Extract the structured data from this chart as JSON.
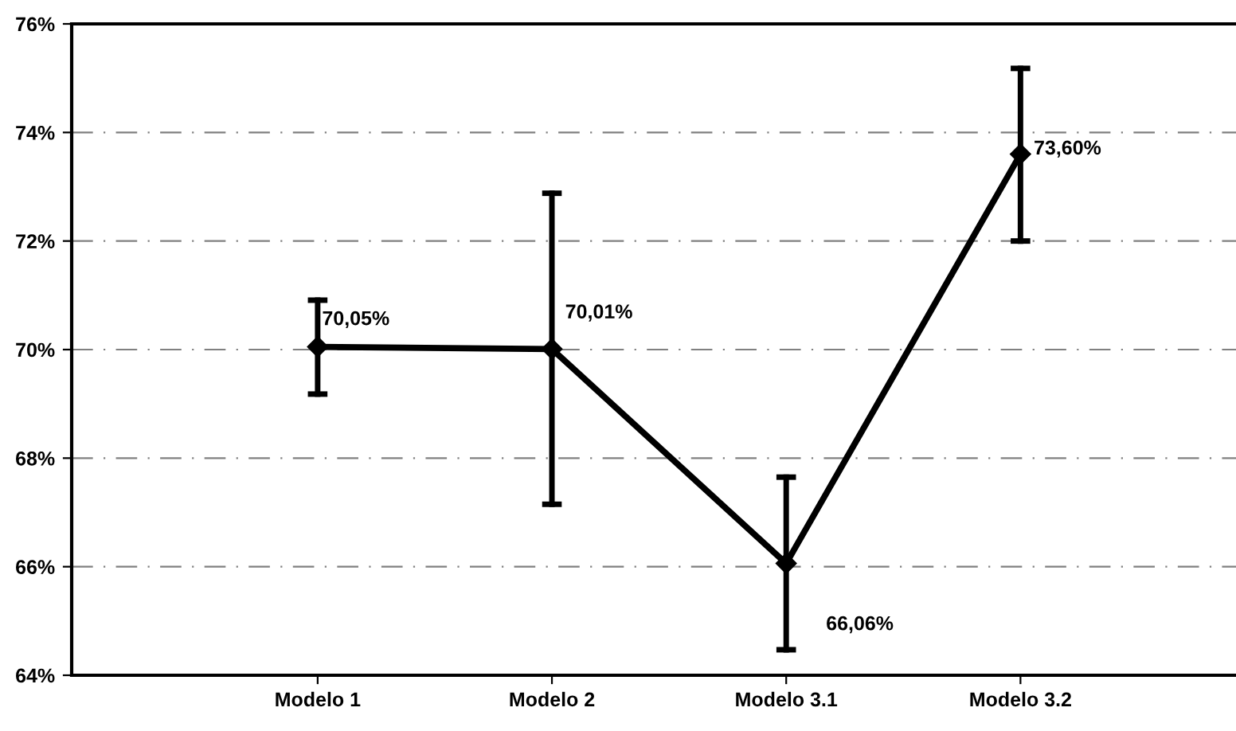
{
  "chart_data": {
    "type": "line",
    "categories": [
      "Modelo 1",
      "Modelo 2",
      "Modelo 3.1",
      "Modelo 3.2"
    ],
    "series": [
      {
        "color": "#000000",
        "values": [
          70.05,
          70.01,
          66.06,
          73.6
        ],
        "errors": [
          [
            69.18,
            70.91
          ],
          [
            67.15,
            72.88
          ],
          [
            64.47,
            67.65
          ],
          [
            72.0,
            75.18
          ]
        ],
        "value_labels": [
          "70,05%",
          "70,01%",
          "66,06%",
          "73,60%"
        ]
      }
    ],
    "ylim": [
      64,
      76
    ],
    "yticks": [
      {
        "value": 64,
        "label": "64%"
      },
      {
        "value": 66,
        "label": "66%"
      },
      {
        "value": 68,
        "label": "68%"
      },
      {
        "value": 70,
        "label": "70%"
      },
      {
        "value": 72,
        "label": "72%"
      },
      {
        "value": 74,
        "label": "74%"
      },
      {
        "value": 76,
        "label": "76%"
      }
    ],
    "grid": "y",
    "marker": "diamond",
    "line_style": "solid"
  }
}
